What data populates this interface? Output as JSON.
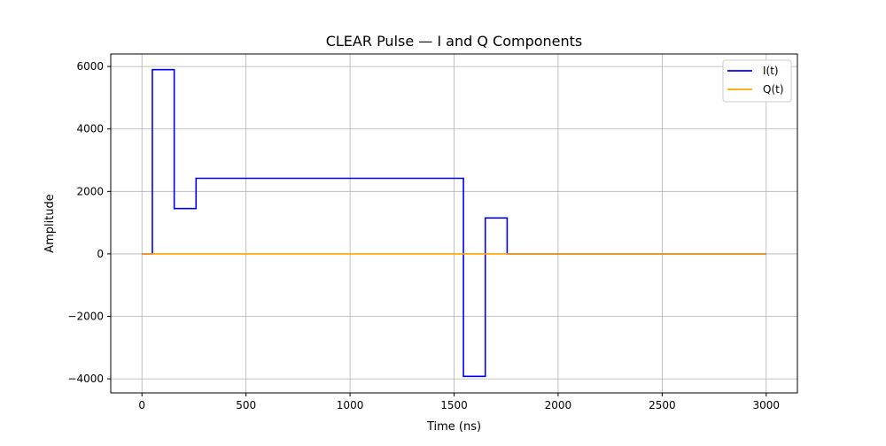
{
  "chart_data": {
    "type": "line",
    "title": "CLEAR Pulse — I and Q Components",
    "xlabel": "Time (ns)",
    "ylabel": "Amplitude",
    "xlim": [
      -150,
      3150
    ],
    "ylim": [
      -4450,
      6400
    ],
    "xticks": [
      0,
      500,
      1000,
      1500,
      2000,
      2500,
      3000
    ],
    "xtick_labels": [
      "0",
      "500",
      "1000",
      "1500",
      "2000",
      "2500",
      "3000"
    ],
    "yticks": [
      -4000,
      -2000,
      0,
      2000,
      4000,
      6000
    ],
    "ytick_labels": [
      "−4000",
      "−2000",
      "0",
      "2000",
      "4000",
      "6000"
    ],
    "grid": true,
    "legend_position": "top-right",
    "series": [
      {
        "name": "I(t)",
        "color": "#0000ff",
        "step": "post",
        "x": [
          0,
          50,
          155,
          260,
          1545,
          1650,
          1755,
          3000
        ],
        "values": [
          0,
          5900,
          1450,
          2420,
          -3920,
          1150,
          0,
          0
        ]
      },
      {
        "name": "Q(t)",
        "color": "#ffa500",
        "step": "post",
        "x": [
          0,
          3000
        ],
        "values": [
          0,
          0
        ]
      }
    ]
  }
}
